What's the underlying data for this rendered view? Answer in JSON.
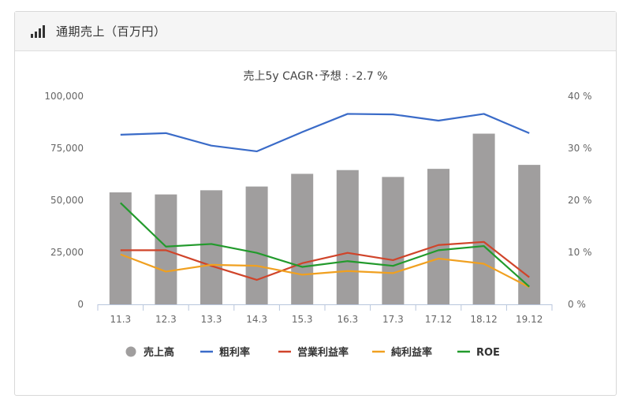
{
  "header": {
    "title": "通期売上（百万円）",
    "icon": "bar-chart-icon"
  },
  "chart_data": {
    "type": "bar",
    "title": "売上5y CAGR･予想 : -2.7 %",
    "categories": [
      "11.3",
      "12.3",
      "13.3",
      "14.3",
      "15.3",
      "16.3",
      "17.3",
      "17.12",
      "18.12",
      "19.12"
    ],
    "y_left": {
      "ylim": [
        0,
        100000
      ],
      "ticks": [
        "0",
        "25,000",
        "50,000",
        "75,000",
        "100,000"
      ]
    },
    "y_right": {
      "ylim": [
        0,
        40
      ],
      "ticks": [
        "0 %",
        "10 %",
        "20 %",
        "30 %",
        "40 %"
      ]
    },
    "bar_series": {
      "name": "売上高",
      "color": "#a09e9e",
      "values": [
        53800,
        52800,
        54800,
        56600,
        62700,
        64500,
        61200,
        65100,
        82000,
        67000
      ]
    },
    "line_series": [
      {
        "name": "粗利率",
        "color": "#3a6bc8",
        "values": [
          32.6,
          32.9,
          30.5,
          29.4,
          33.1,
          36.6,
          36.5,
          35.3,
          36.6,
          32.9
        ]
      },
      {
        "name": "営業利益率",
        "color": "#d0442a",
        "values": [
          10.4,
          10.4,
          7.4,
          4.7,
          7.9,
          9.9,
          8.5,
          11.4,
          12.0,
          5.2
        ]
      },
      {
        "name": "純利益率",
        "color": "#f0a020",
        "values": [
          9.6,
          6.3,
          7.6,
          7.4,
          5.7,
          6.4,
          6.0,
          8.8,
          7.8,
          3.3
        ]
      },
      {
        "name": "ROE",
        "color": "#229a2c",
        "values": [
          19.5,
          11.1,
          11.6,
          9.9,
          7.2,
          8.3,
          7.4,
          10.4,
          11.2,
          3.4
        ]
      }
    ],
    "legend_position": "bottom"
  }
}
